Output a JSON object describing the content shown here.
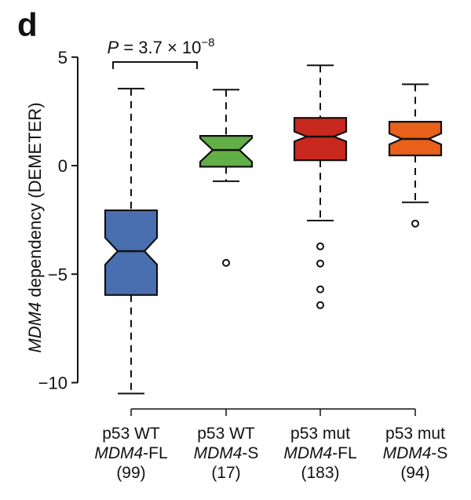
{
  "panel_label": "d",
  "chart_data": {
    "type": "boxplot",
    "notched": true,
    "ylabel_italic": "MDM4",
    "ylabel_rest": " dependency (DEMETER)",
    "ylim": [
      -10.6,
      5
    ],
    "yticks": [
      5,
      0,
      -5,
      -10
    ],
    "ytick_labels": [
      "5",
      "0",
      "−5",
      "−10"
    ],
    "annotation": {
      "text_prefix": "P",
      "text_mid": " = 3.7 × 10",
      "text_exp": "−8",
      "between": [
        0,
        1
      ]
    },
    "groups": [
      {
        "line1": "p53 WT",
        "gene": "MDM4",
        "suffix": "-FL",
        "n_label": "(99)",
        "n": 99,
        "color": "#4A6FB0",
        "whisker_high": 3.55,
        "q3": -2.06,
        "median": -3.94,
        "q1": -5.96,
        "whisker_low": -10.5,
        "outliers": []
      },
      {
        "line1": "p53 WT",
        "gene": "MDM4",
        "suffix": "-S",
        "n_label": "(17)",
        "n": 17,
        "color": "#62AE47",
        "whisker_high": 3.5,
        "q3": 1.37,
        "median": 0.72,
        "q1": -0.05,
        "whisker_low": -0.72,
        "outliers": [
          -4.48
        ]
      },
      {
        "line1": "p53 mut",
        "gene": "MDM4",
        "suffix": "-FL",
        "n_label": "(183)",
        "n": 183,
        "color": "#C9281E",
        "whisker_high": 4.62,
        "q3": 2.2,
        "median": 1.34,
        "q1": 0.25,
        "whisker_low": -2.53,
        "outliers": [
          -3.72,
          -4.51,
          -5.7,
          -6.43
        ]
      },
      {
        "line1": "p53 mut",
        "gene": "MDM4",
        "suffix": "-S",
        "n_label": "(94)",
        "n": 94,
        "color": "#E8601A",
        "whisker_high": 3.75,
        "q3": 2.02,
        "median": 1.23,
        "q1": 0.47,
        "whisker_low": -1.69,
        "outliers": [
          -2.67
        ]
      }
    ]
  }
}
